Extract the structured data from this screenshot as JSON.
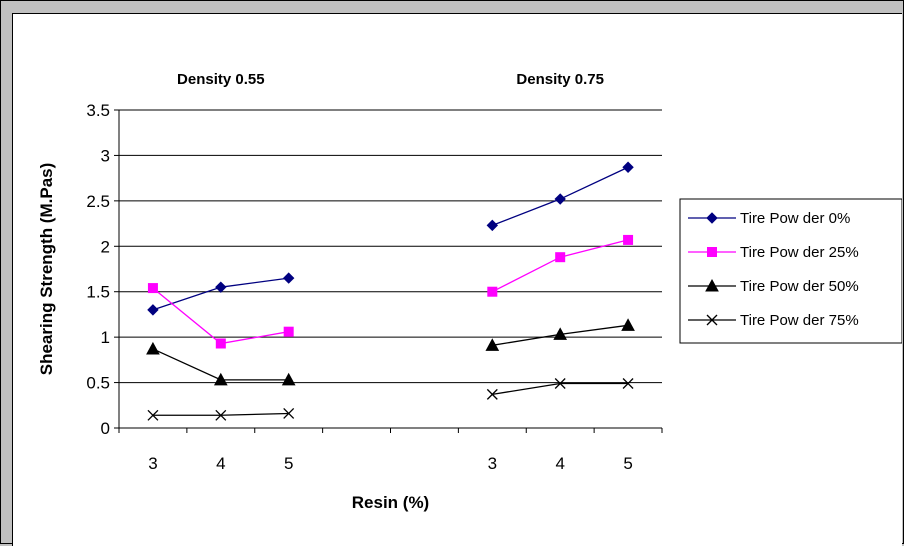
{
  "chart_data": {
    "type": "line",
    "ylabel": "Shearing Strength (M.Pas)",
    "xlabel": "Resin (%)",
    "ylim": [
      0,
      3.5
    ],
    "yticks": [
      "0",
      "0.5",
      "1",
      "1.5",
      "2",
      "2.5",
      "3",
      "3.5"
    ],
    "grid": "horizontal",
    "legend_position": "right",
    "groups": [
      {
        "title": "Density 0.55",
        "categories": [
          "3",
          "4",
          "5"
        ]
      },
      {
        "title": "Density 0.75",
        "categories": [
          "3",
          "4",
          "5"
        ]
      }
    ],
    "series": [
      {
        "name": "Tire Pow der 0%",
        "color": "#000080",
        "marker": "diamond",
        "values": [
          [
            1.3,
            1.55,
            1.65
          ],
          [
            2.23,
            2.52,
            2.87
          ]
        ]
      },
      {
        "name": "Tire Pow der 25%",
        "color": "#ff00ff",
        "marker": "square",
        "values": [
          [
            1.54,
            0.93,
            1.06
          ],
          [
            1.5,
            1.88,
            2.07
          ]
        ]
      },
      {
        "name": "Tire Pow der 50%",
        "color": "#000000",
        "marker": "triangle",
        "values": [
          [
            0.87,
            0.53,
            0.53
          ],
          [
            0.91,
            1.03,
            1.13
          ]
        ]
      },
      {
        "name": "Tire Pow der 75%",
        "color": "#000000",
        "marker": "x",
        "values": [
          [
            0.14,
            0.14,
            0.16
          ],
          [
            0.37,
            0.49,
            0.49
          ]
        ]
      }
    ]
  }
}
